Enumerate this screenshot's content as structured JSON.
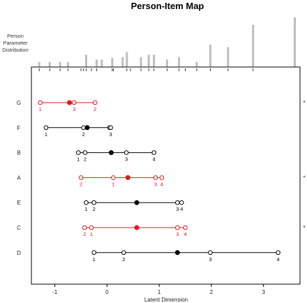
{
  "chart_data": {
    "type": "scatter",
    "title": "Person-Item Map",
    "xlabel": "Latent Dimension",
    "ylabel": "",
    "upper_panel_label": [
      "Person",
      "Parameter",
      "Distribution"
    ],
    "xlim": [
      -1.45,
      3.7
    ],
    "x_ticks": [
      -1,
      0,
      1,
      2,
      3
    ],
    "grid": false,
    "colors": {
      "normal": "#000000",
      "misfit": "#e8141b",
      "histogram": "#bdbdbd"
    },
    "person_distribution": {
      "x": [
        -1.3,
        -1.1,
        -0.9,
        -0.75,
        -0.4,
        -0.2,
        -0.1,
        0.1,
        0.3,
        0.38,
        0.65,
        0.8,
        0.9,
        1.15,
        1.38,
        1.72,
        1.98,
        2.32,
        2.8,
        3.6
      ],
      "counts": [
        1,
        1,
        1,
        1,
        2.5,
        1.5,
        1.5,
        1.8,
        2,
        3,
        2,
        2.5,
        2.5,
        1.5,
        2,
        1,
        4.5,
        4,
        8.5,
        10
      ],
      "rug": [
        -1.3,
        -1.1,
        -0.9,
        -0.75,
        -0.5,
        -0.45,
        -0.4,
        -0.3,
        -0.2,
        0.1,
        0.12,
        0.38,
        0.45,
        0.65,
        0.8,
        0.9,
        1.15,
        1.38,
        1.5,
        1.72,
        1.98,
        2.32,
        2.8
      ]
    },
    "items": [
      {
        "name": "G",
        "location": -0.72,
        "misfit": true,
        "misfit_marker": "*",
        "thresholds": [
          {
            "label": "1",
            "x": -1.28
          },
          {
            "label": "3",
            "x": -0.63
          },
          {
            "label": "2",
            "x": -0.23
          }
        ]
      },
      {
        "name": "F",
        "location": -0.38,
        "misfit": false,
        "misfit_marker": "",
        "thresholds": [
          {
            "label": "1",
            "x": -1.17
          },
          {
            "label": "2",
            "x": -0.45
          },
          {
            "label": "",
            "x": 0.05
          },
          {
            "label": "3",
            "x": 0.07
          }
        ]
      },
      {
        "name": "B",
        "location": 0.08,
        "misfit": false,
        "misfit_marker": "",
        "thresholds": [
          {
            "label": "1",
            "x": -0.55
          },
          {
            "label": "2",
            "x": -0.42
          },
          {
            "label": "3",
            "x": 0.37
          },
          {
            "label": "4",
            "x": 0.9
          }
        ]
      },
      {
        "name": "A",
        "location": 0.4,
        "misfit": true,
        "misfit_marker": "*",
        "thresholds": [
          {
            "label": "2",
            "x": -0.5
          },
          {
            "label": "1",
            "x": 0.12
          },
          {
            "label": "3",
            "x": 0.93
          },
          {
            "label": "4",
            "x": 1.05
          }
        ]
      },
      {
        "name": "E",
        "location": 0.57,
        "misfit": false,
        "misfit_marker": "",
        "thresholds": [
          {
            "label": "1",
            "x": -0.4
          },
          {
            "label": "2",
            "x": -0.25
          },
          {
            "label": "3",
            "x": 1.35
          },
          {
            "label": "4",
            "x": 1.43
          }
        ]
      },
      {
        "name": "C",
        "location": 0.57,
        "misfit": true,
        "misfit_marker": "*",
        "thresholds": [
          {
            "label": "2",
            "x": -0.43
          },
          {
            "label": "1",
            "x": -0.3
          },
          {
            "label": "3",
            "x": 1.35
          },
          {
            "label": "4",
            "x": 1.5
          }
        ]
      },
      {
        "name": "D",
        "location": 1.35,
        "misfit": false,
        "misfit_marker": "",
        "thresholds": [
          {
            "label": "1",
            "x": -0.25
          },
          {
            "label": "2",
            "x": 0.32
          },
          {
            "label": "3",
            "x": 1.98
          },
          {
            "label": "4",
            "x": 3.28
          }
        ]
      }
    ]
  }
}
